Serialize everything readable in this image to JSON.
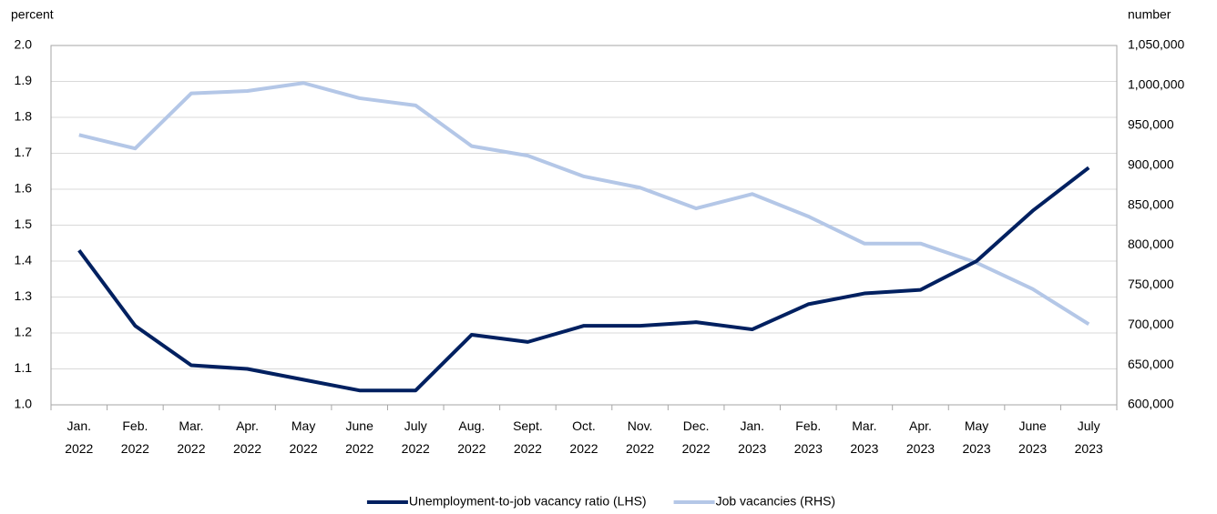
{
  "chart_data": {
    "type": "line",
    "y_label": "percent",
    "y2_label": "number",
    "categories": [
      "Jan. 2022",
      "Feb. 2022",
      "Mar. 2022",
      "Apr. 2022",
      "May 2022",
      "June 2022",
      "July 2022",
      "Aug. 2022",
      "Sept. 2022",
      "Oct. 2022",
      "Nov. 2022",
      "Dec. 2022",
      "Jan. 2023",
      "Feb. 2023",
      "Mar. 2023",
      "Apr. 2023",
      "May 2023",
      "June 2023",
      "July 2023"
    ],
    "series": [
      {
        "name": "Unemployment-to-job vacancy ratio (LHS)",
        "color": "#002060",
        "axis": "y",
        "values": [
          1.43,
          1.22,
          1.11,
          1.1,
          1.07,
          1.04,
          1.04,
          1.195,
          1.175,
          1.22,
          1.22,
          1.23,
          1.21,
          1.28,
          1.31,
          1.32,
          1.4,
          1.54,
          1.66
        ]
      },
      {
        "name": "Job vacancies (RHS)",
        "color": "#b4c7e7",
        "axis": "y2",
        "values": [
          938000,
          921000,
          990000,
          993000,
          1003000,
          984000,
          975000,
          924000,
          912000,
          886000,
          872000,
          846000,
          864000,
          836000,
          802000,
          802000,
          778000,
          745000,
          701000
        ]
      }
    ],
    "ylim": [
      1.0,
      2.0
    ],
    "yticks": [
      {
        "value": 1.0,
        "label": "1.0"
      },
      1.1,
      1.2,
      1.3,
      1.4,
      1.5,
      1.6,
      1.7,
      1.8,
      1.9,
      {
        "value": 2.0,
        "label": "2.0"
      }
    ],
    "y2lim": [
      600000,
      1050000
    ],
    "y2ticks": [
      {
        "value": 600000,
        "label": "600,000"
      },
      {
        "value": 650000,
        "label": "650,000"
      },
      {
        "value": 700000,
        "label": "700,000"
      },
      {
        "value": 750000,
        "label": "750,000"
      },
      {
        "value": 800000,
        "label": "800,000"
      },
      {
        "value": 850000,
        "label": "850,000"
      },
      {
        "value": 900000,
        "label": "900,000"
      },
      {
        "value": 950000,
        "label": "950,000"
      },
      {
        "value": 1000000,
        "label": "1,000,000"
      },
      {
        "value": 1050000,
        "label": "1,050,000"
      }
    ],
    "grid": true,
    "legend": "bottom"
  }
}
